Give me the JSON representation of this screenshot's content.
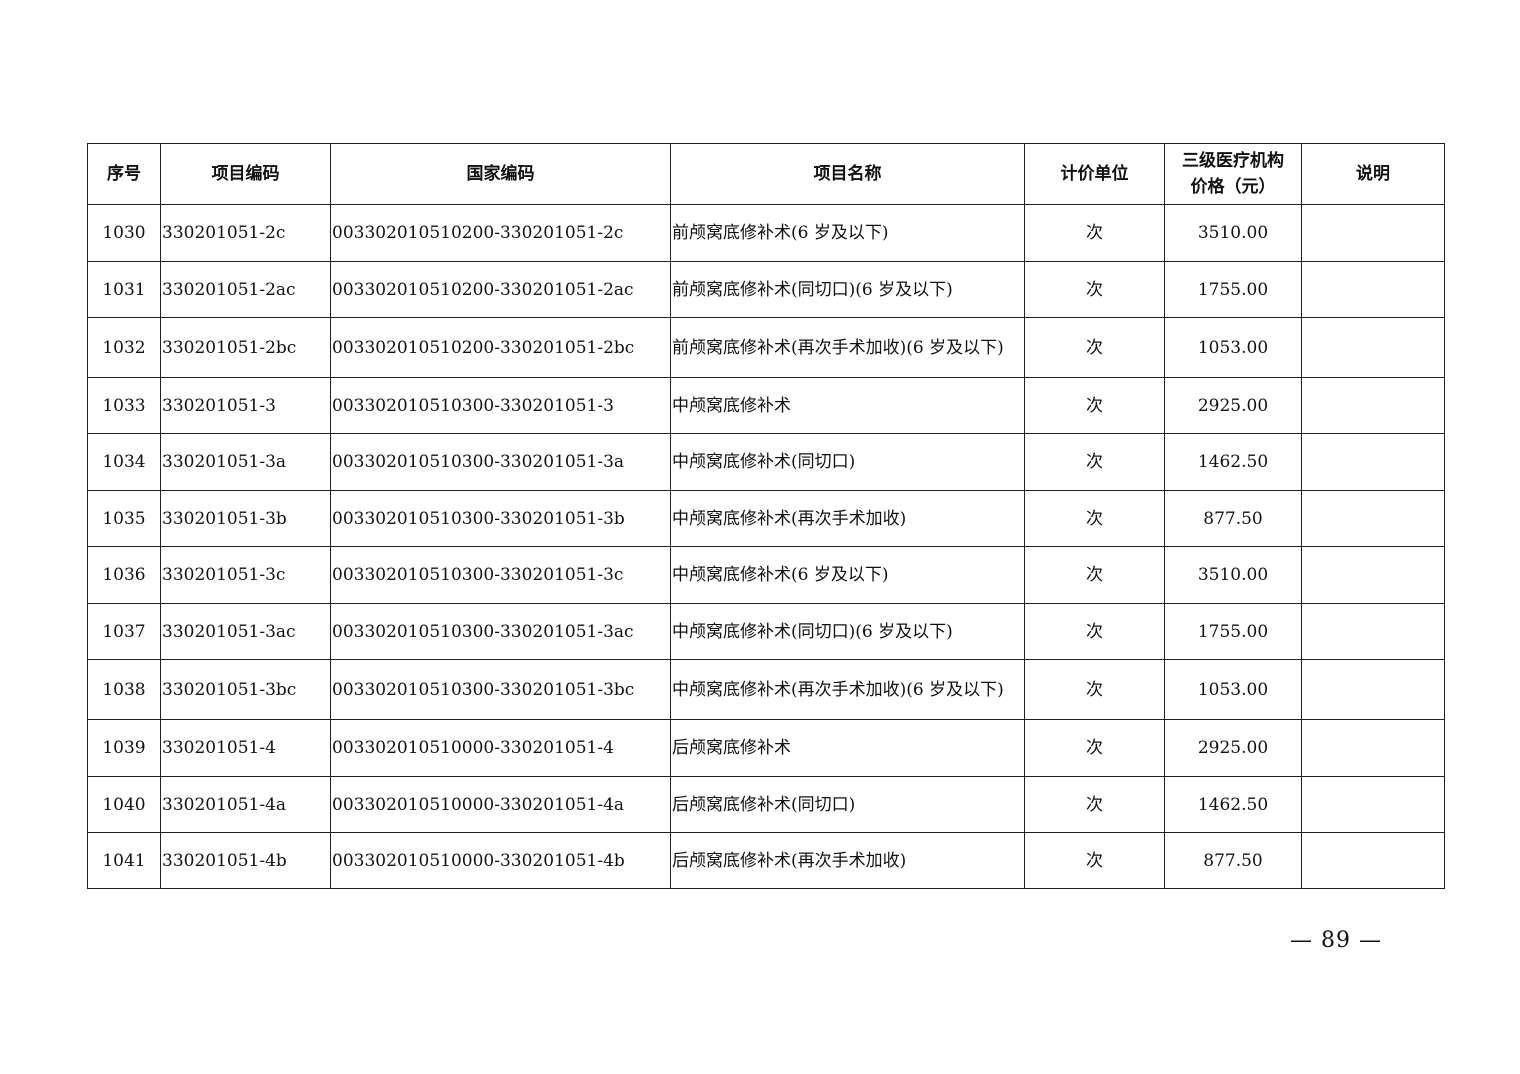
{
  "table": {
    "headers": [
      "序号",
      "项目编码",
      "国家编码",
      "项目名称",
      "计价单位",
      "三级医疗机构价格（元）",
      "说明"
    ],
    "rows": [
      [
        "1030",
        "330201051-2c",
        "003302010510200-330201051-2c",
        "前颅窝底修补术(6 岁及以下)",
        "次",
        "3510.00",
        ""
      ],
      [
        "1031",
        "330201051-2ac",
        "003302010510200-330201051-2ac",
        "前颅窝底修补术(同切口)(6 岁及以下)",
        "次",
        "1755.00",
        ""
      ],
      [
        "1032",
        "330201051-2bc",
        "003302010510200-330201051-2bc",
        "前颅窝底修补术(再次手术加收)(6 岁及以下)",
        "次",
        "1053.00",
        ""
      ],
      [
        "1033",
        "330201051-3",
        "003302010510300-330201051-3",
        "中颅窝底修补术",
        "次",
        "2925.00",
        ""
      ],
      [
        "1034",
        "330201051-3a",
        "003302010510300-330201051-3a",
        "中颅窝底修补术(同切口)",
        "次",
        "1462.50",
        ""
      ],
      [
        "1035",
        "330201051-3b",
        "003302010510300-330201051-3b",
        "中颅窝底修补术(再次手术加收)",
        "次",
        "877.50",
        ""
      ],
      [
        "1036",
        "330201051-3c",
        "003302010510300-330201051-3c",
        "中颅窝底修补术(6 岁及以下)",
        "次",
        "3510.00",
        ""
      ],
      [
        "1037",
        "330201051-3ac",
        "003302010510300-330201051-3ac",
        "中颅窝底修补术(同切口)(6 岁及以下)",
        "次",
        "1755.00",
        ""
      ],
      [
        "1038",
        "330201051-3bc",
        "003302010510300-330201051-3bc",
        "中颅窝底修补术(再次手术加收)(6 岁及以下)",
        "次",
        "1053.00",
        ""
      ],
      [
        "1039",
        "330201051-4",
        "003302010510000-330201051-4",
        "后颅窝底修补术",
        "次",
        "2925.00",
        ""
      ],
      [
        "1040",
        "330201051-4a",
        "003302010510000-330201051-4a",
        "后颅窝底修补术(同切口)",
        "次",
        "1462.50",
        ""
      ],
      [
        "1041",
        "330201051-4b",
        "003302010510000-330201051-4b",
        "后颅窝底修补术(再次手术加收)",
        "次",
        "877.50",
        ""
      ]
    ]
  },
  "footer": {
    "page_number": "— 89 —"
  }
}
